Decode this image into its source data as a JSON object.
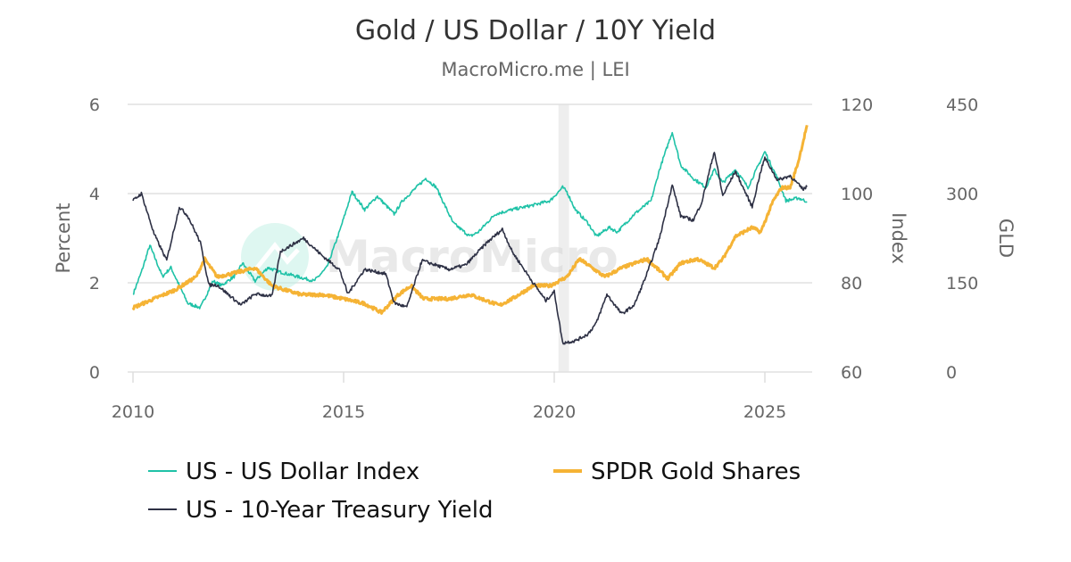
{
  "chart_data": {
    "type": "line",
    "title": "Gold / US Dollar / 10Y Yield",
    "subtitle": "MacroMicro.me | LEI",
    "watermark": "MacroMicro",
    "xlim": [
      2010,
      2026
    ],
    "x_ticks": [
      "2010",
      "2015",
      "2020",
      "2025"
    ],
    "grid": true,
    "legend_position": "bottom",
    "shaded_periods": [
      [
        2020.1,
        2020.35
      ]
    ],
    "axes": {
      "left": {
        "label": "Percent",
        "ylim": [
          0,
          6
        ],
        "ticks": [
          "0",
          "2",
          "4",
          "6"
        ]
      },
      "right1": {
        "label": "Index",
        "ylim": [
          60,
          120
        ],
        "ticks": [
          "60",
          "80",
          "100",
          "120"
        ]
      },
      "right2": {
        "label": "GLD",
        "ylim": [
          0,
          450
        ],
        "ticks": [
          "0",
          "150",
          "300",
          "450"
        ]
      }
    },
    "series": [
      {
        "name": "US - US Dollar Index",
        "axis": "right1",
        "color": "#1fc2a7",
        "x": [
          2010.0,
          2010.2,
          2010.4,
          2010.7,
          2010.9,
          2011.3,
          2011.6,
          2011.9,
          2012.1,
          2012.4,
          2012.6,
          2012.9,
          2013.2,
          2013.5,
          2013.9,
          2014.3,
          2014.6,
          2014.9,
          2015.2,
          2015.5,
          2015.8,
          2016.2,
          2016.4,
          2016.95,
          2017.2,
          2017.6,
          2018.0,
          2018.2,
          2018.6,
          2019.0,
          2019.5,
          2019.9,
          2020.2,
          2020.3,
          2020.5,
          2020.8,
          2021.0,
          2021.3,
          2021.5,
          2021.9,
          2022.3,
          2022.5,
          2022.8,
          2023.0,
          2023.3,
          2023.6,
          2023.8,
          2024.0,
          2024.3,
          2024.6,
          2024.9,
          2025.0,
          2025.3,
          2025.5,
          2025.8,
          2026.0
        ],
        "y": [
          77.4,
          82.4,
          88.4,
          81.4,
          83.4,
          75.4,
          74.4,
          80.4,
          79.4,
          81.4,
          84.4,
          80.4,
          83.4,
          82.4,
          81.4,
          80.4,
          83.4,
          91.4,
          100.4,
          96.4,
          99.4,
          95.4,
          98.4,
          103.4,
          101.4,
          93.4,
          90.4,
          91.4,
          95.4,
          96.4,
          97.4,
          98.4,
          101.4,
          100.4,
          96.4,
          93.4,
          90.4,
          92.4,
          91.4,
          95.4,
          98.4,
          105.4,
          113.8,
          106.4,
          103.4,
          101.4,
          105.4,
          102.4,
          105.4,
          101.4,
          107.4,
          109.4,
          103.4,
          98.4,
          99.0,
          98.2
        ]
      },
      {
        "name": "SPDR Gold Shares",
        "axis": "right2",
        "color": "#f5b335",
        "x": [
          2010.0,
          2010.5,
          2011.0,
          2011.5,
          2011.7,
          2012.0,
          2012.5,
          2012.9,
          2013.3,
          2013.6,
          2014.0,
          2014.5,
          2015.0,
          2015.5,
          2015.9,
          2016.3,
          2016.6,
          2016.9,
          2017.5,
          2018.0,
          2018.7,
          2019.0,
          2019.5,
          2019.9,
          2020.3,
          2020.6,
          2020.9,
          2021.2,
          2021.6,
          2022.2,
          2022.7,
          2023.0,
          2023.4,
          2023.8,
          2024.0,
          2024.3,
          2024.7,
          2024.9,
          2025.2,
          2025.4,
          2025.6,
          2025.8,
          2025.95,
          2026.0
        ],
        "y": [
          108,
          123,
          138,
          160,
          190,
          160,
          168,
          175,
          145,
          138,
          130,
          130,
          123,
          115,
          100,
          130,
          145,
          123,
          123,
          130,
          112,
          123,
          145,
          145,
          160,
          190,
          175,
          160,
          175,
          190,
          157,
          183,
          190,
          175,
          190,
          228,
          243,
          235,
          288,
          310,
          310,
          355,
          400,
          415
        ]
      },
      {
        "name": "US - 10-Year Treasury Yield",
        "axis": "left",
        "color": "#2e3145",
        "x": [
          2010.0,
          2010.2,
          2010.5,
          2010.8,
          2011.1,
          2011.3,
          2011.6,
          2011.8,
          2012.0,
          2012.56,
          2012.9,
          2013.3,
          2013.5,
          2014.05,
          2014.5,
          2014.9,
          2015.1,
          2015.5,
          2016.0,
          2016.2,
          2016.5,
          2016.86,
          2017.5,
          2017.9,
          2018.4,
          2018.77,
          2019.0,
          2019.5,
          2019.8,
          2020.0,
          2020.2,
          2020.5,
          2020.8,
          2021.0,
          2021.25,
          2021.6,
          2021.9,
          2022.2,
          2022.5,
          2022.8,
          2023.0,
          2023.3,
          2023.5,
          2023.8,
          2024.0,
          2024.3,
          2024.7,
          2024.9,
          2025.0,
          2025.3,
          2025.6,
          2025.9,
          2026.0
        ],
        "y": [
          3.84,
          4.0,
          3.1,
          2.5,
          3.7,
          3.5,
          2.9,
          1.95,
          1.95,
          1.5,
          1.75,
          1.7,
          2.7,
          3.0,
          2.6,
          2.3,
          1.75,
          2.3,
          2.2,
          1.55,
          1.45,
          2.5,
          2.3,
          2.4,
          2.9,
          3.2,
          2.7,
          2.0,
          1.6,
          1.8,
          0.65,
          0.7,
          0.85,
          1.1,
          1.74,
          1.3,
          1.5,
          2.2,
          3.0,
          4.2,
          3.5,
          3.4,
          3.8,
          4.95,
          3.95,
          4.5,
          3.7,
          4.5,
          4.8,
          4.3,
          4.4,
          4.1,
          4.15
        ]
      }
    ]
  },
  "legend": [
    {
      "label": "US - US Dollar Index",
      "color": "#1fc2a7"
    },
    {
      "label": "SPDR Gold Shares",
      "color": "#f5b335"
    },
    {
      "label": "US - 10-Year Treasury Yield",
      "color": "#2e3145"
    }
  ]
}
